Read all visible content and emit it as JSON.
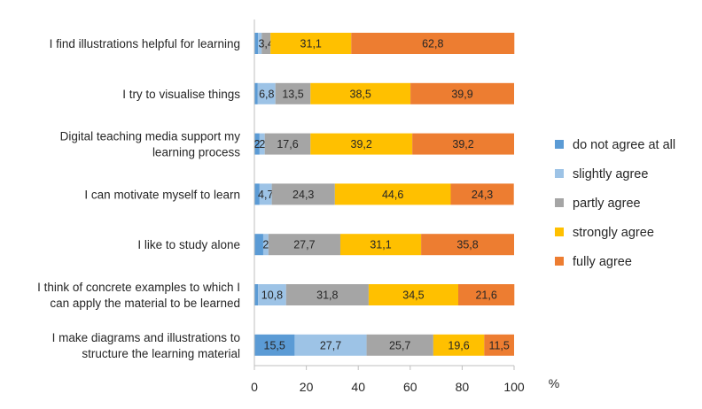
{
  "chart_data": {
    "type": "bar",
    "orientation": "horizontal",
    "stacked": true,
    "title": "",
    "xlabel": "%",
    "ylabel": "",
    "xlim": [
      0,
      100
    ],
    "xticks": [
      0,
      20,
      40,
      60,
      80,
      100
    ],
    "grid": false,
    "legend_position": "right",
    "categories": [
      [
        "I find illustrations helpful for learning"
      ],
      [
        "I try to visualise things"
      ],
      [
        "Digital teaching media support my",
        "learning process"
      ],
      [
        "I can motivate myself to learn"
      ],
      [
        "I like to study alone"
      ],
      [
        "I think of concrete examples to which I",
        "can apply the material to be learned"
      ],
      [
        "I make diagrams and illustrations to",
        "structure the learning material"
      ]
    ],
    "series": [
      {
        "name": "do not agree at all",
        "color": "#5B9BD5",
        "values": [
          1.4,
          1.3,
          2.0,
          2.0,
          3.4,
          1.4,
          15.5
        ],
        "labels": [
          "",
          "",
          "2",
          "",
          "",
          "",
          "15,5"
        ]
      },
      {
        "name": "slightly agree",
        "color": "#9DC3E6",
        "values": [
          1.4,
          6.8,
          2.0,
          4.7,
          2.0,
          10.8,
          27.7
        ],
        "labels": [
          "",
          "6,8",
          "2",
          "4,7",
          "2",
          "10,8",
          "27,7"
        ]
      },
      {
        "name": "partly agree",
        "color": "#A5A5A5",
        "values": [
          3.4,
          13.5,
          17.6,
          24.3,
          27.7,
          31.8,
          25.7
        ],
        "labels": [
          "3,4",
          "13,5",
          "17,6",
          "24,3",
          "27,7",
          "31,8",
          "25,7"
        ]
      },
      {
        "name": "strongly agree",
        "color": "#FFC000",
        "values": [
          31.1,
          38.5,
          39.2,
          44.6,
          31.1,
          34.5,
          19.6
        ],
        "labels": [
          "31,1",
          "38,5",
          "39,2",
          "44,6",
          "31,1",
          "34,5",
          "19,6"
        ]
      },
      {
        "name": "fully agree",
        "color": "#ED7D31",
        "values": [
          62.8,
          39.9,
          39.2,
          24.3,
          35.8,
          21.6,
          11.5
        ],
        "labels": [
          "62,8",
          "39,9",
          "39,2",
          "24,3",
          "35,8",
          "21,6",
          "11,5"
        ]
      }
    ]
  }
}
